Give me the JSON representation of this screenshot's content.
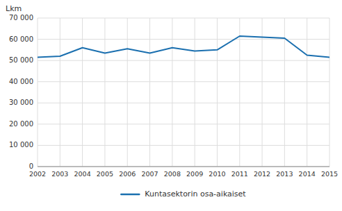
{
  "chart_data": {
    "type": "line",
    "ylabel": "Lkm",
    "x": [
      2002,
      2003,
      2004,
      2005,
      2006,
      2007,
      2008,
      2009,
      2010,
      2011,
      2012,
      2013,
      2014,
      2015
    ],
    "series": [
      {
        "name": "Kuntasektorin osa-aikaiset",
        "color": "#1a6faf",
        "values": [
          51500,
          52000,
          56000,
          53500,
          55500,
          53500,
          56000,
          54500,
          55000,
          61500,
          61000,
          60500,
          52500,
          51500
        ]
      }
    ],
    "xlim": [
      2002,
      2015
    ],
    "xticks": [
      2002,
      2003,
      2004,
      2005,
      2006,
      2007,
      2008,
      2009,
      2010,
      2011,
      2012,
      2013,
      2014,
      2015
    ],
    "ylim": [
      0,
      70000
    ],
    "yticks": [
      0,
      {
        "value": 10000,
        "label": "10 000"
      },
      {
        "value": 20000,
        "label": "20 000"
      },
      {
        "value": 30000,
        "label": "30 000"
      },
      {
        "value": 40000,
        "label": "40 000"
      },
      {
        "value": 50000,
        "label": "50 000"
      },
      {
        "value": 60000,
        "label": "60 000"
      },
      {
        "value": 70000,
        "label": "70 000"
      }
    ],
    "grid": true,
    "legend": "bottom"
  }
}
